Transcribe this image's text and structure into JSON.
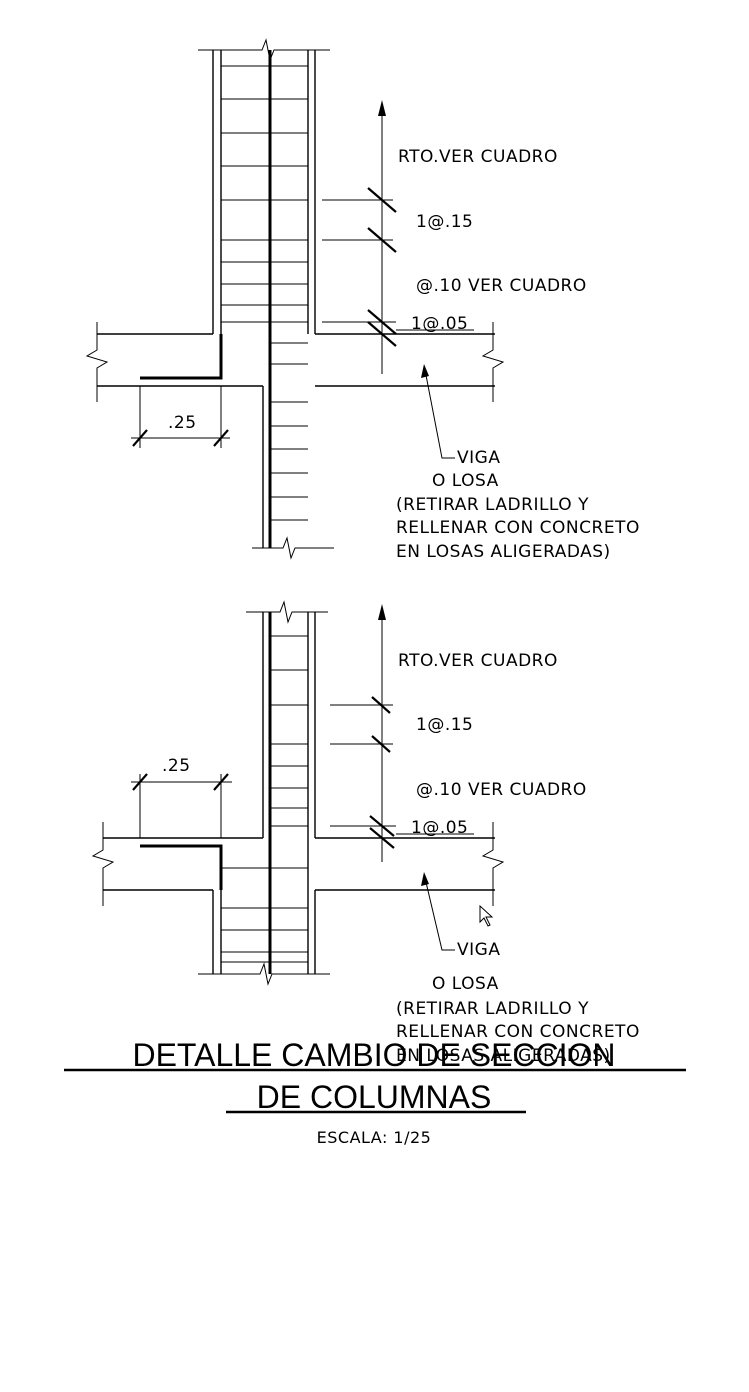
{
  "details": [
    {
      "upper_note": "RTO.VER CUADRO",
      "spacing_a": "1@.15",
      "spacing_b": "@.10 VER CUADRO",
      "spacing_c": "1@.05",
      "dimension": ".25",
      "beam_label": [
        "VIGA",
        "O LOSA",
        "(RETIRAR LADRILLO Y",
        "RELLENAR CON CONCRETO",
        "EN LOSAS ALIGERADAS)"
      ]
    },
    {
      "upper_note": "RTO.VER CUADRO",
      "spacing_a": "1@.15",
      "spacing_b": "@.10 VER CUADRO",
      "spacing_c": "1@.05",
      "dimension": ".25",
      "beam_label": [
        "VIGA",
        "O LOSA",
        "(RETIRAR LADRILLO Y",
        "RELLENAR CON CONCRETO",
        "EN LOSAS ALIGERADAS)"
      ]
    }
  ],
  "title": {
    "line1": "DETALLE CAMBIO DE SECCION",
    "line2": "DE COLUMNAS",
    "scale": "ESCALA:  1/25"
  }
}
